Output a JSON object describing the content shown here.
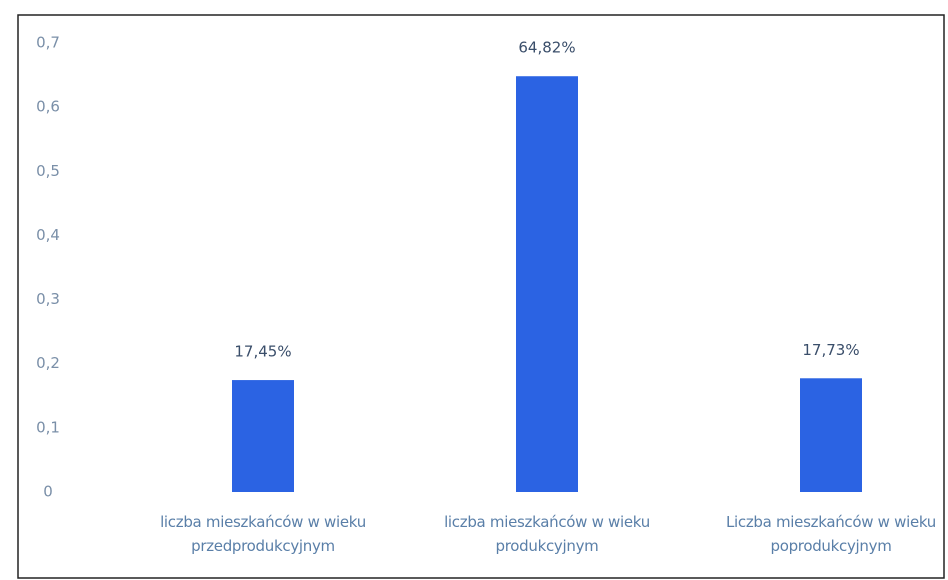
{
  "chart_data": {
    "type": "bar",
    "categories": [
      "liczba mieszkańców w wieku przedprodukcyjnym",
      "liczba mieszkańców w wieku produkcyjnym",
      "Liczba mieszkańców w wieku poprodukcyjnym"
    ],
    "values": [
      0.1745,
      0.6482,
      0.1773
    ],
    "value_labels": [
      "17,45%",
      "64,82%",
      "17,73%"
    ],
    "color": "#2b63e3",
    "ylim": [
      0,
      0.7
    ],
    "yticks": [
      0,
      {
        "value": 0.1,
        "label": "0,1"
      },
      {
        "value": 0.2,
        "label": "0,2"
      },
      {
        "value": 0.3,
        "label": "0,3"
      },
      {
        "value": 0.4,
        "label": "0,4"
      },
      {
        "value": 0.5,
        "label": "0,5"
      },
      {
        "value": 0.6,
        "label": "0,6"
      },
      {
        "value": 0.7,
        "label": "0,7"
      }
    ],
    "grid": false
  }
}
